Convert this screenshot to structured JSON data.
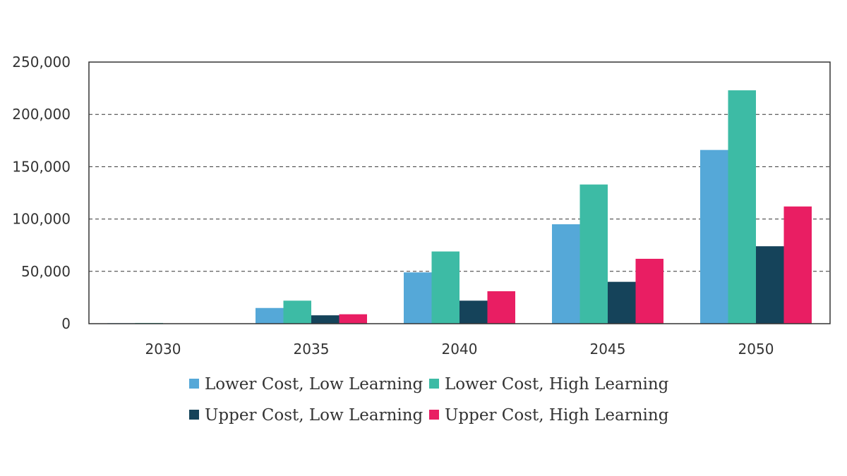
{
  "chart_data": {
    "type": "bar",
    "title": "",
    "xlabel": "",
    "ylabel": "",
    "categories": [
      "2030",
      "2035",
      "2040",
      "2045",
      "2050"
    ],
    "ylim": [
      0,
      250000
    ],
    "yticks": [
      0,
      50000,
      100000,
      150000,
      200000,
      250000
    ],
    "ytick_labels": [
      "0",
      "50,000",
      "100,000",
      "150,000",
      "200,000",
      "250,000"
    ],
    "grid": "horizontal dashed",
    "legend_position": "bottom",
    "series": [
      {
        "name": "Lower Cost, Low Learning",
        "color": "#55a8d8",
        "values": [
          500,
          15000,
          49000,
          95000,
          166000
        ]
      },
      {
        "name": "Lower Cost, High Learning",
        "color": "#3dbba5",
        "values": [
          700,
          22000,
          69000,
          133000,
          223000
        ]
      },
      {
        "name": "Upper Cost, Low Learning",
        "color": "#15435a",
        "values": [
          200,
          8000,
          22000,
          40000,
          74000
        ]
      },
      {
        "name": "Upper Cost, High Learning",
        "color": "#e91e63",
        "values": [
          300,
          9000,
          31000,
          62000,
          112000
        ]
      }
    ]
  }
}
